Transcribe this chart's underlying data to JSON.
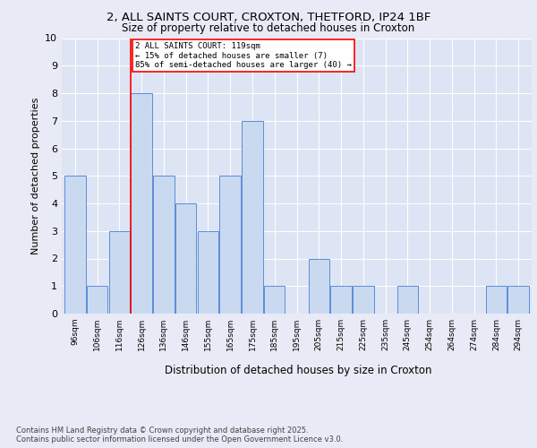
{
  "title1": "2, ALL SAINTS COURT, CROXTON, THETFORD, IP24 1BF",
  "title2": "Size of property relative to detached houses in Croxton",
  "xlabel": "Distribution of detached houses by size in Croxton",
  "ylabel": "Number of detached properties",
  "bins": [
    "96sqm",
    "106sqm",
    "116sqm",
    "126sqm",
    "136sqm",
    "146sqm",
    "155sqm",
    "165sqm",
    "175sqm",
    "185sqm",
    "195sqm",
    "205sqm",
    "215sqm",
    "225sqm",
    "235sqm",
    "245sqm",
    "254sqm",
    "264sqm",
    "274sqm",
    "284sqm",
    "294sqm"
  ],
  "counts": [
    5,
    1,
    3,
    8,
    5,
    4,
    3,
    5,
    7,
    1,
    0,
    2,
    1,
    1,
    0,
    1,
    0,
    0,
    0,
    1,
    1
  ],
  "bar_color": "#c9d9f0",
  "bar_edge_color": "#5b8dd9",
  "red_line_x": 2.5,
  "annotation_text": "2 ALL SAINTS COURT: 119sqm\n← 15% of detached houses are smaller (7)\n85% of semi-detached houses are larger (40) →",
  "annotation_box_color": "white",
  "annotation_box_edge_color": "red",
  "red_line_color": "red",
  "background_color": "#e8eaf5",
  "plot_bg_color": "#dde5f4",
  "grid_color": "white",
  "footer": "Contains HM Land Registry data © Crown copyright and database right 2025.\nContains public sector information licensed under the Open Government Licence v3.0.",
  "ylim": [
    0,
    10
  ],
  "yticks": [
    0,
    1,
    2,
    3,
    4,
    5,
    6,
    7,
    8,
    9,
    10
  ]
}
